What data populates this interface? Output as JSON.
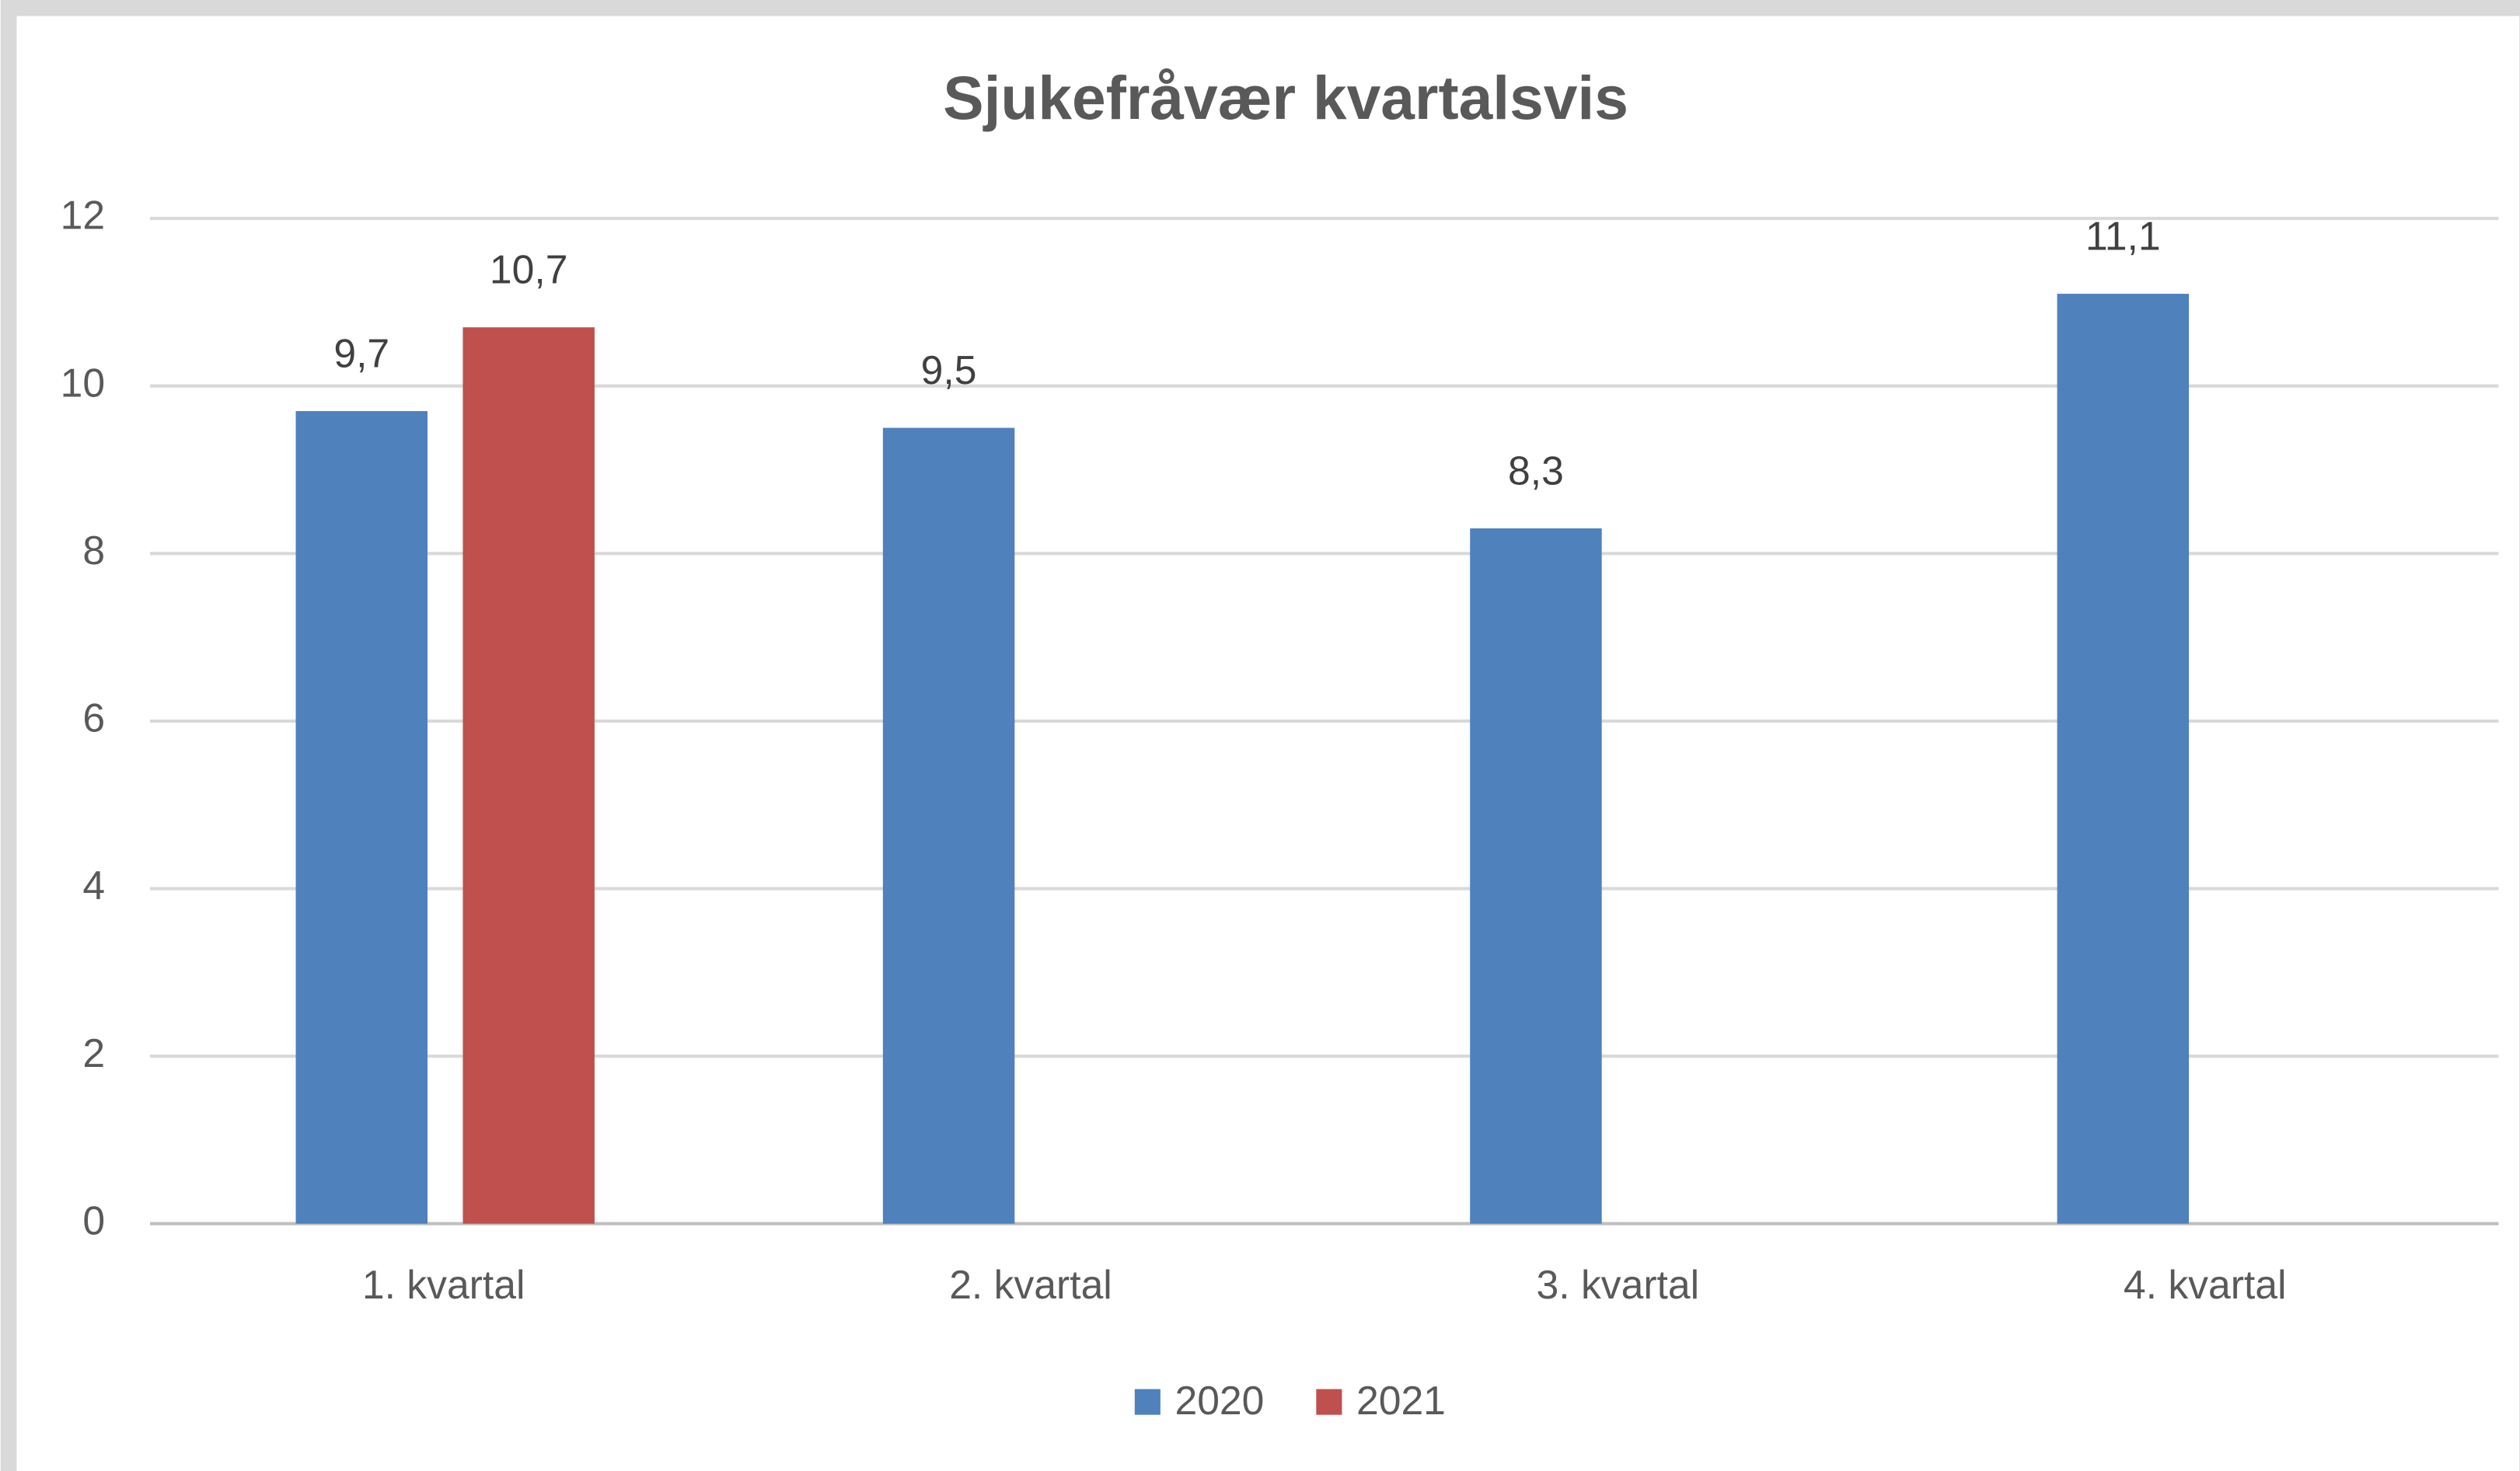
{
  "chart_data": {
    "type": "bar",
    "title": "Sjukefråvær kvartalsvis",
    "categories": [
      "1. kvartal",
      "2. kvartal",
      "3. kvartal",
      "4. kvartal"
    ],
    "series": [
      {
        "name": "2020",
        "color": "#4f81bd",
        "values": [
          9.7,
          9.5,
          8.3,
          11.1
        ],
        "value_labels": [
          "9,7",
          "9,5",
          "8,3",
          "11,1"
        ]
      },
      {
        "name": "2021",
        "color": "#c0504d",
        "values": [
          10.7,
          null,
          null,
          null
        ],
        "value_labels": [
          "10,7",
          null,
          null,
          null
        ]
      }
    ],
    "ylim": [
      0,
      12
    ],
    "yticks": [
      0,
      2,
      4,
      6,
      8,
      10,
      12
    ],
    "grid": true,
    "legend": "bottom"
  }
}
